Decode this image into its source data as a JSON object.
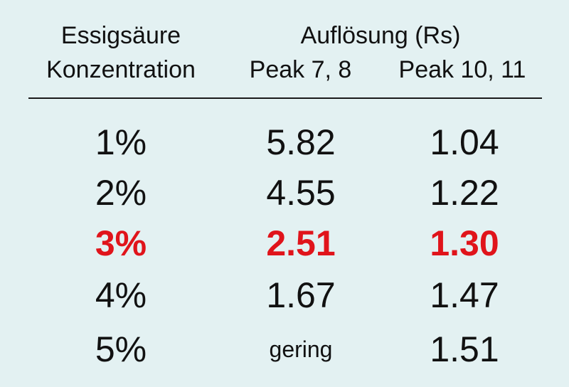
{
  "header": {
    "col1_line1": "Essigsäure",
    "col1_line2": "Konzentration",
    "group_title": "Auflösung (Rs)",
    "col2": "Peak 7, 8",
    "col3": "Peak 10, 11"
  },
  "colors": {
    "background": "#e3f1f2",
    "text": "#111111",
    "highlight": "#e0141b"
  },
  "rows": [
    {
      "concentration": "1%",
      "peak_7_8": "5.82",
      "peak_10_11": "1.04",
      "highlighted": false
    },
    {
      "concentration": "2%",
      "peak_7_8": "4.55",
      "peak_10_11": "1.22",
      "highlighted": false
    },
    {
      "concentration": "3%",
      "peak_7_8": "2.51",
      "peak_10_11": "1.30",
      "highlighted": true
    },
    {
      "concentration": "4%",
      "peak_7_8": "1.67",
      "peak_10_11": "1.47",
      "highlighted": false
    },
    {
      "concentration": "5%",
      "peak_7_8": "gering",
      "peak_10_11": "1.51",
      "highlighted": false
    }
  ]
}
